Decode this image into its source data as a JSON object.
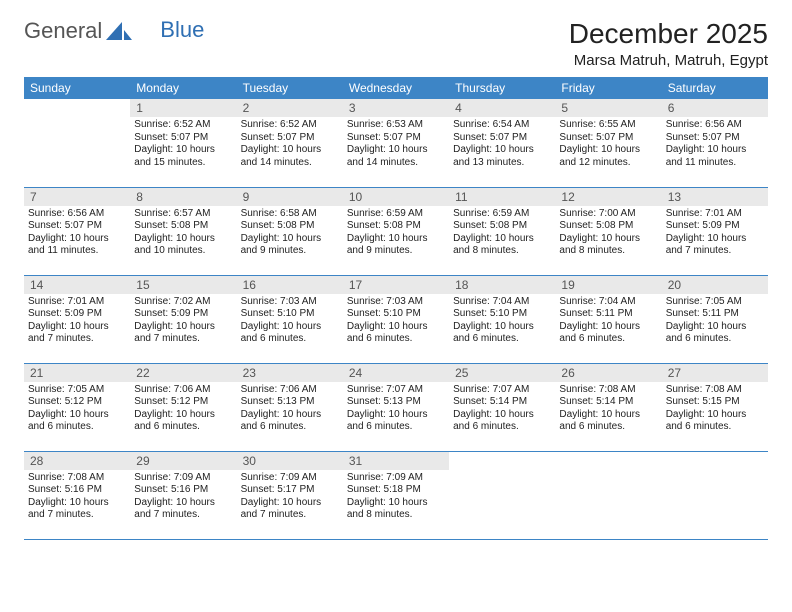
{
  "brand": {
    "part1": "General",
    "part2": "Blue"
  },
  "title": "December 2025",
  "location": "Marsa Matruh, Matruh, Egypt",
  "header_color": "#3d85c6",
  "rule_color": "#3d85c6",
  "daynum_bg": "#e9e9e9",
  "weekdays": [
    "Sunday",
    "Monday",
    "Tuesday",
    "Wednesday",
    "Thursday",
    "Friday",
    "Saturday"
  ],
  "weeks": [
    [
      null,
      {
        "n": "1",
        "sr": "Sunrise: 6:52 AM",
        "ss": "Sunset: 5:07 PM",
        "d1": "Daylight: 10 hours",
        "d2": "and 15 minutes."
      },
      {
        "n": "2",
        "sr": "Sunrise: 6:52 AM",
        "ss": "Sunset: 5:07 PM",
        "d1": "Daylight: 10 hours",
        "d2": "and 14 minutes."
      },
      {
        "n": "3",
        "sr": "Sunrise: 6:53 AM",
        "ss": "Sunset: 5:07 PM",
        "d1": "Daylight: 10 hours",
        "d2": "and 14 minutes."
      },
      {
        "n": "4",
        "sr": "Sunrise: 6:54 AM",
        "ss": "Sunset: 5:07 PM",
        "d1": "Daylight: 10 hours",
        "d2": "and 13 minutes."
      },
      {
        "n": "5",
        "sr": "Sunrise: 6:55 AM",
        "ss": "Sunset: 5:07 PM",
        "d1": "Daylight: 10 hours",
        "d2": "and 12 minutes."
      },
      {
        "n": "6",
        "sr": "Sunrise: 6:56 AM",
        "ss": "Sunset: 5:07 PM",
        "d1": "Daylight: 10 hours",
        "d2": "and 11 minutes."
      }
    ],
    [
      {
        "n": "7",
        "sr": "Sunrise: 6:56 AM",
        "ss": "Sunset: 5:07 PM",
        "d1": "Daylight: 10 hours",
        "d2": "and 11 minutes."
      },
      {
        "n": "8",
        "sr": "Sunrise: 6:57 AM",
        "ss": "Sunset: 5:08 PM",
        "d1": "Daylight: 10 hours",
        "d2": "and 10 minutes."
      },
      {
        "n": "9",
        "sr": "Sunrise: 6:58 AM",
        "ss": "Sunset: 5:08 PM",
        "d1": "Daylight: 10 hours",
        "d2": "and 9 minutes."
      },
      {
        "n": "10",
        "sr": "Sunrise: 6:59 AM",
        "ss": "Sunset: 5:08 PM",
        "d1": "Daylight: 10 hours",
        "d2": "and 9 minutes."
      },
      {
        "n": "11",
        "sr": "Sunrise: 6:59 AM",
        "ss": "Sunset: 5:08 PM",
        "d1": "Daylight: 10 hours",
        "d2": "and 8 minutes."
      },
      {
        "n": "12",
        "sr": "Sunrise: 7:00 AM",
        "ss": "Sunset: 5:08 PM",
        "d1": "Daylight: 10 hours",
        "d2": "and 8 minutes."
      },
      {
        "n": "13",
        "sr": "Sunrise: 7:01 AM",
        "ss": "Sunset: 5:09 PM",
        "d1": "Daylight: 10 hours",
        "d2": "and 7 minutes."
      }
    ],
    [
      {
        "n": "14",
        "sr": "Sunrise: 7:01 AM",
        "ss": "Sunset: 5:09 PM",
        "d1": "Daylight: 10 hours",
        "d2": "and 7 minutes."
      },
      {
        "n": "15",
        "sr": "Sunrise: 7:02 AM",
        "ss": "Sunset: 5:09 PM",
        "d1": "Daylight: 10 hours",
        "d2": "and 7 minutes."
      },
      {
        "n": "16",
        "sr": "Sunrise: 7:03 AM",
        "ss": "Sunset: 5:10 PM",
        "d1": "Daylight: 10 hours",
        "d2": "and 6 minutes."
      },
      {
        "n": "17",
        "sr": "Sunrise: 7:03 AM",
        "ss": "Sunset: 5:10 PM",
        "d1": "Daylight: 10 hours",
        "d2": "and 6 minutes."
      },
      {
        "n": "18",
        "sr": "Sunrise: 7:04 AM",
        "ss": "Sunset: 5:10 PM",
        "d1": "Daylight: 10 hours",
        "d2": "and 6 minutes."
      },
      {
        "n": "19",
        "sr": "Sunrise: 7:04 AM",
        "ss": "Sunset: 5:11 PM",
        "d1": "Daylight: 10 hours",
        "d2": "and 6 minutes."
      },
      {
        "n": "20",
        "sr": "Sunrise: 7:05 AM",
        "ss": "Sunset: 5:11 PM",
        "d1": "Daylight: 10 hours",
        "d2": "and 6 minutes."
      }
    ],
    [
      {
        "n": "21",
        "sr": "Sunrise: 7:05 AM",
        "ss": "Sunset: 5:12 PM",
        "d1": "Daylight: 10 hours",
        "d2": "and 6 minutes."
      },
      {
        "n": "22",
        "sr": "Sunrise: 7:06 AM",
        "ss": "Sunset: 5:12 PM",
        "d1": "Daylight: 10 hours",
        "d2": "and 6 minutes."
      },
      {
        "n": "23",
        "sr": "Sunrise: 7:06 AM",
        "ss": "Sunset: 5:13 PM",
        "d1": "Daylight: 10 hours",
        "d2": "and 6 minutes."
      },
      {
        "n": "24",
        "sr": "Sunrise: 7:07 AM",
        "ss": "Sunset: 5:13 PM",
        "d1": "Daylight: 10 hours",
        "d2": "and 6 minutes."
      },
      {
        "n": "25",
        "sr": "Sunrise: 7:07 AM",
        "ss": "Sunset: 5:14 PM",
        "d1": "Daylight: 10 hours",
        "d2": "and 6 minutes."
      },
      {
        "n": "26",
        "sr": "Sunrise: 7:08 AM",
        "ss": "Sunset: 5:14 PM",
        "d1": "Daylight: 10 hours",
        "d2": "and 6 minutes."
      },
      {
        "n": "27",
        "sr": "Sunrise: 7:08 AM",
        "ss": "Sunset: 5:15 PM",
        "d1": "Daylight: 10 hours",
        "d2": "and 6 minutes."
      }
    ],
    [
      {
        "n": "28",
        "sr": "Sunrise: 7:08 AM",
        "ss": "Sunset: 5:16 PM",
        "d1": "Daylight: 10 hours",
        "d2": "and 7 minutes."
      },
      {
        "n": "29",
        "sr": "Sunrise: 7:09 AM",
        "ss": "Sunset: 5:16 PM",
        "d1": "Daylight: 10 hours",
        "d2": "and 7 minutes."
      },
      {
        "n": "30",
        "sr": "Sunrise: 7:09 AM",
        "ss": "Sunset: 5:17 PM",
        "d1": "Daylight: 10 hours",
        "d2": "and 7 minutes."
      },
      {
        "n": "31",
        "sr": "Sunrise: 7:09 AM",
        "ss": "Sunset: 5:18 PM",
        "d1": "Daylight: 10 hours",
        "d2": "and 8 minutes."
      },
      null,
      null,
      null
    ]
  ]
}
